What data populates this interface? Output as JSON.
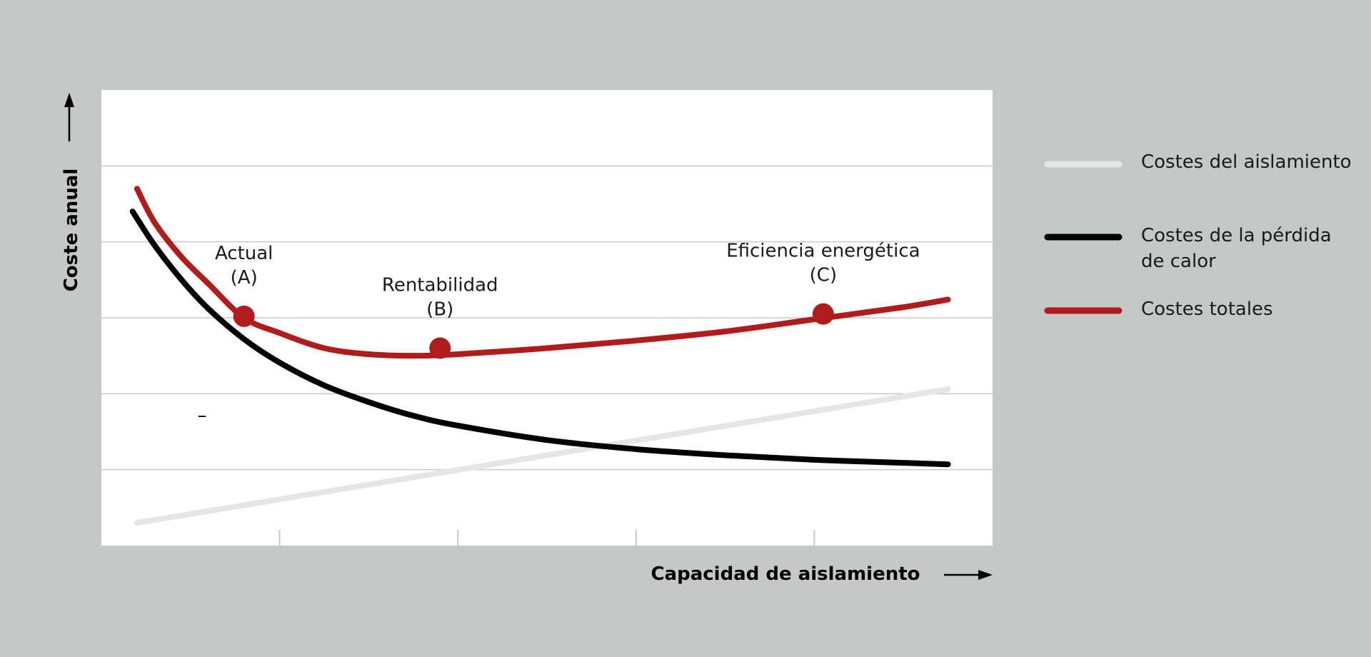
{
  "colors": {
    "background": "#c6c7c7",
    "plot_background": "#ffffff",
    "grid": "#c8c8c8",
    "insulation": "#e6e6e6",
    "heat_loss": "#000000",
    "total": "#b01c1c"
  },
  "chart_data": {
    "type": "line",
    "title": "",
    "xlabel": "Capacidad de aislamiento",
    "ylabel": "Coste anual",
    "axis_arrows": true,
    "tick_labels_shown": false,
    "xlim": [
      0,
      10
    ],
    "ylim": [
      0,
      6
    ],
    "x_ticks": [
      2,
      4,
      6,
      8
    ],
    "y_gridlines": [
      1,
      2,
      3,
      4,
      5
    ],
    "grid": "horizontal",
    "legend_position": "right",
    "series": [
      {
        "name": "Costes del aislamiento",
        "color": "#e6e6e6",
        "x": [
          0.4,
          9.5
        ],
        "y": [
          0.3,
          2.06
        ]
      },
      {
        "name": "Costes de la pérdida de calor",
        "color": "#000000",
        "x": [
          0.35,
          0.6,
          0.9,
          1.2,
          1.6,
          2.0,
          2.5,
          3.0,
          3.5,
          4.0,
          5.0,
          6.0,
          7.0,
          8.0,
          9.0,
          9.5
        ],
        "y": [
          4.4,
          3.95,
          3.5,
          3.12,
          2.72,
          2.41,
          2.11,
          1.89,
          1.71,
          1.58,
          1.39,
          1.27,
          1.19,
          1.13,
          1.09,
          1.07
        ]
      },
      {
        "name": "Costes totales",
        "color": "#b01c1c",
        "x": [
          0.4,
          0.6,
          0.9,
          1.2,
          1.6,
          2.0,
          2.5,
          3.0,
          3.5,
          4.0,
          5.0,
          6.0,
          7.0,
          8.0,
          9.0,
          9.5
        ],
        "y": [
          4.7,
          4.25,
          3.8,
          3.45,
          3.0,
          2.8,
          2.6,
          2.52,
          2.5,
          2.52,
          2.6,
          2.7,
          2.82,
          2.98,
          3.14,
          3.24
        ]
      }
    ],
    "points": [
      {
        "label": "Actual",
        "id": "(A)",
        "x": 1.6,
        "y": 3.02,
        "label_gap": 48
      },
      {
        "label": "Rentabilidad",
        "id": "(B)",
        "x": 3.8,
        "y": 2.6,
        "label_gap": 48
      },
      {
        "label": "Eficiencia energética",
        "id": "(C)",
        "x": 8.1,
        "y": 3.05,
        "label_gap": 48
      }
    ],
    "annotations": [
      "–"
    ]
  }
}
